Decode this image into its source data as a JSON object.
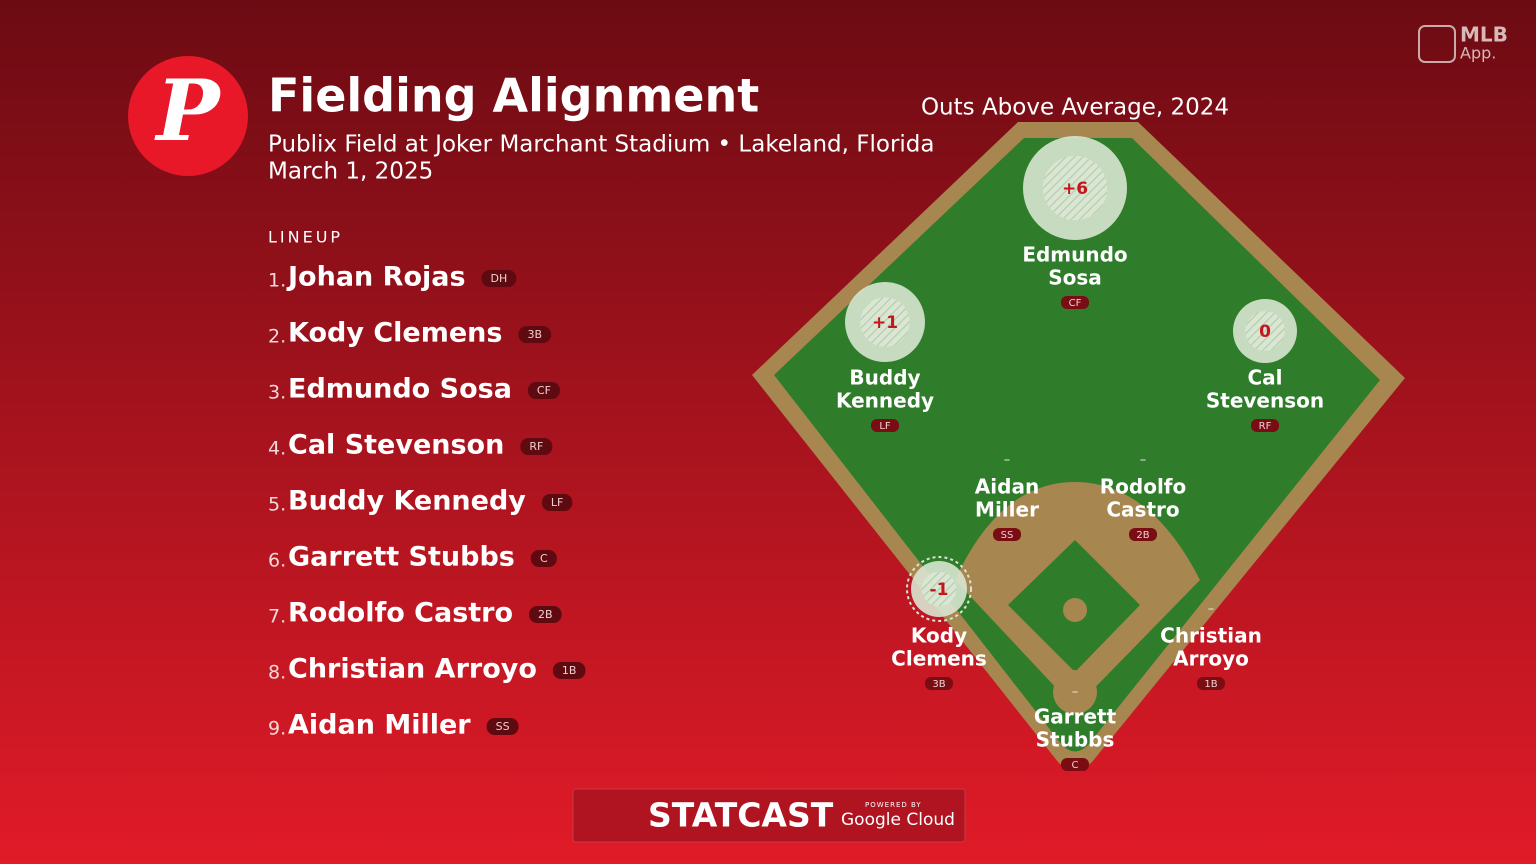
{
  "logo": {
    "letter": "P"
  },
  "header": {
    "title": "Fielding Alignment",
    "venue": "Publix Field at Joker Marchant Stadium • Lakeland, Florida",
    "date": "March 1, 2025"
  },
  "app_badge": {
    "brand": "MLB",
    "sub": "App."
  },
  "lineup": {
    "label": "LINEUP",
    "entries": [
      {
        "order": "1.",
        "name": "Johan Rojas",
        "position": "DH"
      },
      {
        "order": "2.",
        "name": "Kody Clemens",
        "position": "3B"
      },
      {
        "order": "3.",
        "name": "Edmundo Sosa",
        "position": "CF"
      },
      {
        "order": "4.",
        "name": "Cal Stevenson",
        "position": "RF"
      },
      {
        "order": "5.",
        "name": "Buddy Kennedy",
        "position": "LF"
      },
      {
        "order": "6.",
        "name": "Garrett Stubbs",
        "position": "C"
      },
      {
        "order": "7.",
        "name": "Rodolfo Castro",
        "position": "2B"
      },
      {
        "order": "8.",
        "name": "Christian Arroyo",
        "position": "1B"
      },
      {
        "order": "9.",
        "name": "Aidan Miller",
        "position": "SS"
      }
    ]
  },
  "field": {
    "subtitle": "Outs Above Average, 2024",
    "fielders": [
      {
        "name_lines": [
          "Edmundo",
          "Sosa"
        ],
        "position": "CF",
        "oaa": "+6"
      },
      {
        "name_lines": [
          "Buddy",
          "Kennedy"
        ],
        "position": "LF",
        "oaa": "+1"
      },
      {
        "name_lines": [
          "Cal",
          "Stevenson"
        ],
        "position": "RF",
        "oaa": "0"
      },
      {
        "name_lines": [
          "Aidan",
          "Miller"
        ],
        "position": "SS",
        "oaa": "–"
      },
      {
        "name_lines": [
          "Rodolfo",
          "Castro"
        ],
        "position": "2B",
        "oaa": "–"
      },
      {
        "name_lines": [
          "Kody",
          "Clemens"
        ],
        "position": "3B",
        "oaa": "-1"
      },
      {
        "name_lines": [
          "Christian",
          "Arroyo"
        ],
        "position": "1B",
        "oaa": "–"
      },
      {
        "name_lines": [
          "Garrett",
          "Stubbs"
        ],
        "position": "C",
        "oaa": "–"
      }
    ]
  },
  "footer": {
    "brand": "STATCAST",
    "powered": "POWERED BY",
    "partner": "Google Cloud"
  }
}
